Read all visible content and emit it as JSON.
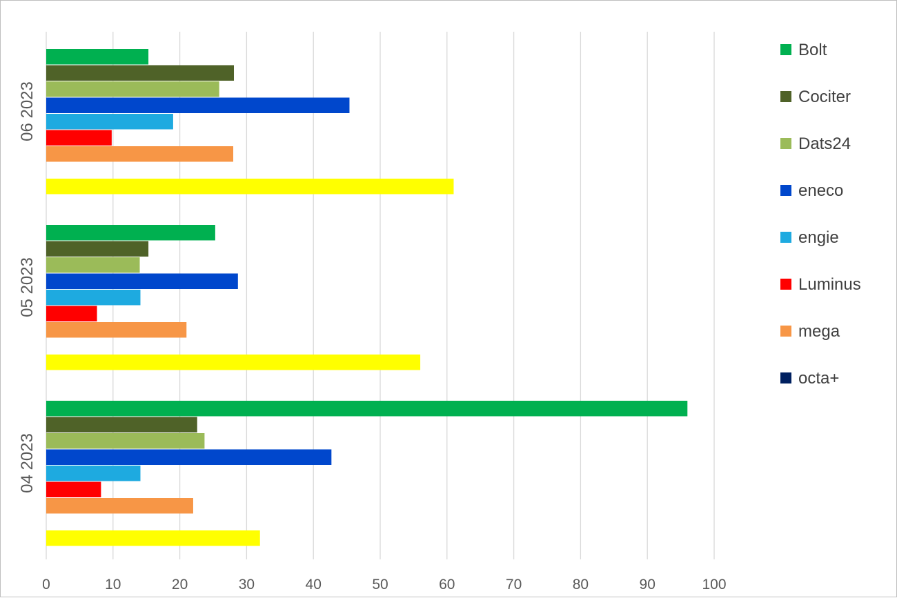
{
  "chart_data": {
    "type": "bar",
    "orientation": "horizontal",
    "categories": [
      "04 2023",
      "05 2023",
      "06 2023"
    ],
    "xlim": [
      0,
      100
    ],
    "xticks": [
      0,
      10,
      20,
      30,
      40,
      50,
      60,
      70,
      80,
      90,
      100
    ],
    "grid": "vertical",
    "legend_position": "right",
    "series": [
      {
        "name": "Bolt",
        "color": "#00B050",
        "values": [
          96,
          25.3,
          15.3
        ]
      },
      {
        "name": "Cociter",
        "color": "#4F6228",
        "values": [
          22.6,
          15.3,
          28.1
        ]
      },
      {
        "name": "Dats24",
        "color": "#9BBB59",
        "values": [
          23.7,
          14,
          25.9
        ]
      },
      {
        "name": "eneco",
        "color": "#0047CC",
        "values": [
          42.7,
          28.7,
          45.4
        ]
      },
      {
        "name": "engie",
        "color": "#1EAAE0",
        "values": [
          14.1,
          14.1,
          19
        ]
      },
      {
        "name": "Luminus",
        "color": "#FF0000",
        "values": [
          8.2,
          7.6,
          9.8
        ]
      },
      {
        "name": "mega",
        "color": "#F79646",
        "values": [
          22,
          21,
          28
        ]
      },
      {
        "name": "octa+",
        "color": "#002060",
        "values": [
          0,
          0,
          0
        ]
      },
      {
        "name": "",
        "color": "#FFFF00",
        "values": [
          32,
          56,
          61
        ]
      }
    ]
  }
}
